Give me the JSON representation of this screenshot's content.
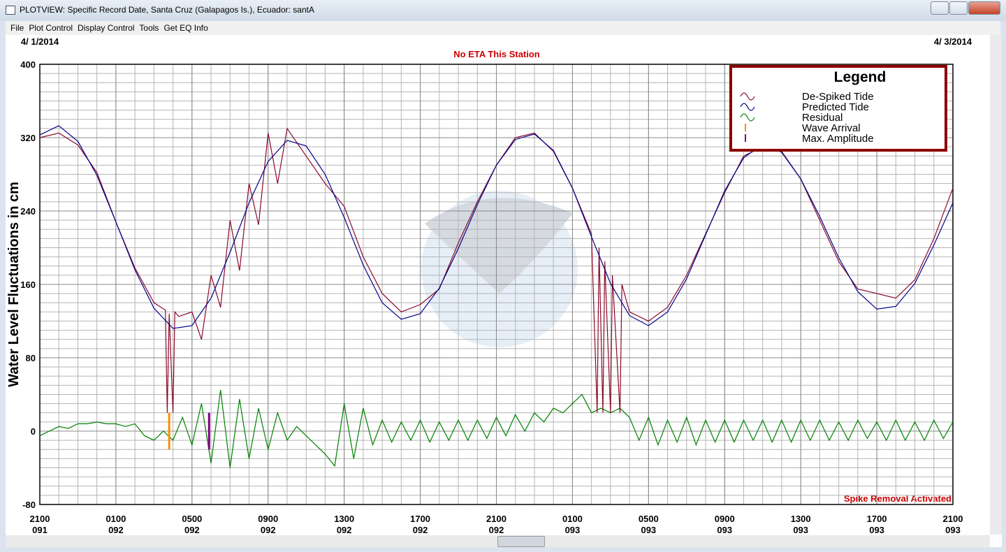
{
  "window": {
    "title": "PLOTVIEW: Specific Record Date, Santa Cruz (Galapagos Is.), Ecuador: santA"
  },
  "menu": [
    "File",
    "Plot Control",
    "Display Control",
    "Tools",
    "Get EQ Info"
  ],
  "chart_data": {
    "type": "line",
    "start_date": "4/ 1/2014",
    "end_date": "4/ 3/2014",
    "title": "No ETA This Station",
    "annotation": "Spike Removal Activated",
    "y_label": "Water Level Fluctuations in cm",
    "legend_title": "Legend",
    "legend": "top-right",
    "grid": true,
    "minor_grid": {
      "x": 1,
      "y": 10
    },
    "xlim": [
      0,
      48
    ],
    "xticks": [
      {
        "value": 0,
        "label": "2100\n091"
      },
      {
        "value": 4,
        "label": "0100\n092"
      },
      {
        "value": 8,
        "label": "0500\n092"
      },
      {
        "value": 12,
        "label": "0900\n092"
      },
      {
        "value": 16,
        "label": "1300\n092"
      },
      {
        "value": 20,
        "label": "1700\n092"
      },
      {
        "value": 24,
        "label": "2100\n092"
      },
      {
        "value": 28,
        "label": "0100\n093"
      },
      {
        "value": 32,
        "label": "0500\n093"
      },
      {
        "value": 36,
        "label": "0900\n093"
      },
      {
        "value": 40,
        "label": "1300\n093"
      },
      {
        "value": 44,
        "label": "1700\n093"
      },
      {
        "value": 48,
        "label": "2100\n093"
      }
    ],
    "ylim": [
      -80,
      400
    ],
    "yticks": [
      -80,
      0,
      80,
      160,
      240,
      320,
      400
    ],
    "series": [
      {
        "name": "De-Spiked Tide",
        "color": "#8b0a2a",
        "x": [
          0,
          1,
          2,
          3,
          4,
          5,
          6,
          6.6,
          6.7,
          6.8,
          7,
          7.1,
          7.3,
          8,
          8.5,
          9,
          9.5,
          10,
          10.5,
          11,
          11.5,
          12,
          12.5,
          13,
          14,
          15,
          16,
          17,
          18,
          19,
          20,
          21,
          22,
          23,
          24,
          25,
          26,
          27,
          28,
          29,
          29.3,
          29.4,
          29.6,
          29.7,
          30,
          30.1,
          30.5,
          30.6,
          31,
          32,
          33,
          34,
          35,
          36,
          37,
          38,
          39,
          40,
          41,
          42,
          43,
          44,
          45,
          46,
          47,
          48
        ],
        "values": [
          320,
          325,
          312,
          282,
          228,
          178,
          140,
          132,
          20,
          128,
          20,
          130,
          125,
          130,
          100,
          170,
          135,
          230,
          175,
          270,
          225,
          325,
          270,
          330,
          300,
          270,
          245,
          190,
          150,
          130,
          138,
          155,
          205,
          250,
          290,
          320,
          325,
          305,
          265,
          215,
          20,
          200,
          20,
          185,
          20,
          170,
          20,
          160,
          130,
          120,
          135,
          170,
          215,
          260,
          300,
          310,
          305,
          275,
          230,
          185,
          155,
          150,
          145,
          165,
          210,
          265
        ]
      },
      {
        "name": "Predicted Tide",
        "color": "#00008b",
        "x": [
          0,
          1,
          2,
          3,
          4,
          5,
          6,
          7,
          8,
          9,
          10,
          11,
          12,
          13,
          14,
          15,
          16,
          17,
          18,
          19,
          20,
          21,
          22,
          23,
          24,
          25,
          26,
          27,
          28,
          29,
          30,
          31,
          32,
          33,
          34,
          35,
          36,
          37,
          38,
          39,
          40,
          41,
          42,
          43,
          44,
          45,
          46,
          47,
          48
        ],
        "values": [
          323,
          333,
          316,
          279,
          228,
          176,
          134,
          112,
          115,
          145,
          195,
          249,
          294,
          317,
          311,
          280,
          233,
          181,
          140,
          122,
          128,
          156,
          199,
          247,
          290,
          318,
          324,
          306,
          265,
          212,
          161,
          126,
          115,
          130,
          166,
          214,
          262,
          298,
          313,
          304,
          275,
          234,
          189,
          152,
          133,
          136,
          161,
          203,
          249
        ]
      },
      {
        "name": "Residual",
        "color": "#008000",
        "x": [
          0,
          0.5,
          1,
          1.5,
          2,
          2.5,
          3,
          3.5,
          4,
          4.5,
          5,
          5.5,
          6,
          6.5,
          7,
          7.5,
          8,
          8.5,
          9,
          9.5,
          10,
          10.5,
          11,
          11.5,
          12,
          12.5,
          13,
          13.5,
          14,
          14.5,
          15,
          15.5,
          16,
          16.5,
          17,
          17.5,
          18,
          18.5,
          19,
          19.5,
          20,
          20.5,
          21,
          21.5,
          22,
          22.5,
          23,
          23.5,
          24,
          24.5,
          25,
          25.5,
          26,
          26.5,
          27,
          27.5,
          28,
          28.5,
          29,
          29.5,
          30,
          30.5,
          31,
          31.5,
          32,
          32.5,
          33,
          33.5,
          34,
          34.5,
          35,
          35.5,
          36,
          36.5,
          37,
          37.5,
          38,
          38.5,
          39,
          39.5,
          40,
          40.5,
          41,
          41.5,
          42,
          42.5,
          43,
          43.5,
          44,
          44.5,
          45,
          45.5,
          46,
          46.5,
          47,
          47.5,
          48
        ],
        "values": [
          -5,
          0,
          5,
          3,
          8,
          8,
          10,
          8,
          8,
          5,
          8,
          -5,
          -10,
          0,
          -10,
          15,
          -15,
          30,
          -35,
          45,
          -40,
          35,
          -30,
          25,
          -20,
          20,
          -10,
          5,
          -5,
          -15,
          -25,
          -38,
          30,
          -30,
          25,
          -15,
          12,
          -12,
          10,
          -10,
          12,
          -12,
          10,
          -10,
          12,
          -10,
          12,
          -8,
          15,
          -5,
          18,
          0,
          20,
          10,
          25,
          20,
          30,
          40,
          20,
          25,
          20,
          25,
          15,
          -10,
          15,
          -15,
          12,
          -12,
          15,
          -15,
          12,
          -12,
          12,
          -12,
          12,
          -10,
          12,
          -12,
          12,
          -12,
          12,
          -10,
          12,
          -10,
          10,
          -10,
          12,
          -8,
          10,
          -10,
          12,
          -10,
          10,
          -10,
          12,
          -8,
          10
        ]
      },
      {
        "name": "Wave Arrival",
        "color": "#ff8c00",
        "x": [
          6.8,
          6.8
        ],
        "values": [
          -20,
          20
        ]
      },
      {
        "name": "Max. Amplitude",
        "color": "#800080",
        "x": [
          8.9,
          8.9
        ],
        "values": [
          -20,
          20
        ]
      }
    ]
  }
}
